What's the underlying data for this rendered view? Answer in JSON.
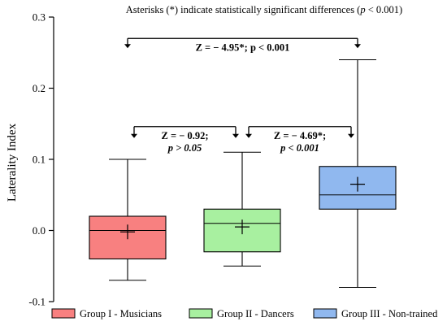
{
  "chart_data": {
    "type": "box",
    "title": "Asterisks (*) indicate statistically significant differences (p < 0.001)",
    "title_parts": [
      "Asterisks (*) indicate statistically significant differences (",
      "p",
      " < 0.001)"
    ],
    "ylabel": "Laterality Index",
    "xlabel": "",
    "ylim": [
      -0.1,
      0.3
    ],
    "yticks": [
      "-0.1",
      "0.0",
      "0.1",
      "0.2",
      "0.3"
    ],
    "grid": false,
    "legend_position": "bottom",
    "groups": [
      {
        "name": "Group I - Musicians",
        "color": "#f88080",
        "min": -0.07,
        "q1": -0.04,
        "median": 0.0,
        "q3": 0.02,
        "max": 0.1,
        "mean": -0.002
      },
      {
        "name": "Group II - Dancers",
        "color": "#a8f0a0",
        "min": -0.05,
        "q1": -0.03,
        "median": 0.01,
        "q3": 0.03,
        "max": 0.11,
        "mean": 0.005
      },
      {
        "name": "Group III - Non-trained",
        "color": "#90b8ef",
        "min": -0.08,
        "q1": 0.03,
        "median": 0.05,
        "q3": 0.09,
        "max": 0.24,
        "mean": 0.065
      }
    ],
    "comparisons": [
      {
        "from": 0,
        "to": 2,
        "y": 0.27,
        "line1": "Z = − 4.95*;  p < 0.001",
        "line2": ""
      },
      {
        "from": 0,
        "to": 1,
        "y": 0.146,
        "line1": "Z = − 0.92;",
        "line2": "p > 0.05"
      },
      {
        "from": 1,
        "to": 2,
        "y": 0.146,
        "line1": "Z = − 4.69*;",
        "line2": "p < 0.001"
      }
    ]
  }
}
